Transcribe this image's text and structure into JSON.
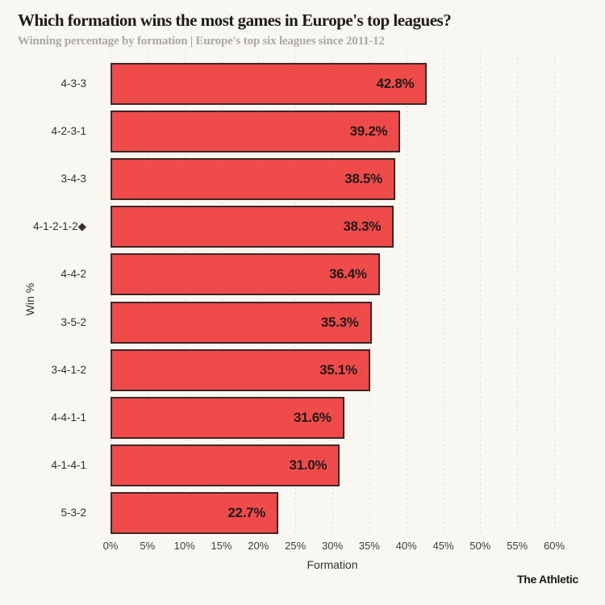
{
  "header": {
    "title": "Which formation wins the most games in Europe's top leagues?",
    "subtitle": "Winning percentage by formation | Europe's top six leagues since 2011-12"
  },
  "footer": {
    "credit": "The Athletic"
  },
  "colors": {
    "background": "#F8F7F1",
    "bar_fill": "#F04B4B",
    "bar_border": "#3F2824",
    "grid": "#DBD9D2",
    "title_text": "#201B17",
    "subtitle_text": "#ACA9A1",
    "value_text": "#211A17"
  },
  "chart_data": {
    "type": "bar",
    "orientation": "horizontal",
    "title": "Which formation wins the most games in Europe's top leagues?",
    "subtitle": "Winning percentage by formation | Europe's top six leagues since 2011-12",
    "categories": [
      "4-3-3",
      "4-2-3-1",
      "3-4-3",
      "4-1-2-1-2◆",
      "4-4-2",
      "3-5-2",
      "3-4-1-2",
      "4-4-1-1",
      "4-1-4-1",
      "5-3-2"
    ],
    "values": [
      42.8,
      39.2,
      38.5,
      38.3,
      36.4,
      35.3,
      35.1,
      31.6,
      31.0,
      22.7
    ],
    "value_labels": [
      "42.8%",
      "39.2%",
      "38.5%",
      "38.3%",
      "36.4%",
      "35.3%",
      "35.1%",
      "31.6%",
      "31.0%",
      "22.7%"
    ],
    "xlabel": "Formation",
    "ylabel": "Win %",
    "xlim": [
      0,
      60
    ],
    "x_tick_step": 5,
    "x_ticks": [
      "0%",
      "5%",
      "10%",
      "15%",
      "20%",
      "25%",
      "30%",
      "35%",
      "40%",
      "45%",
      "50%",
      "55%",
      "60%"
    ],
    "grid": "vertical-dotted",
    "legend": "none"
  }
}
